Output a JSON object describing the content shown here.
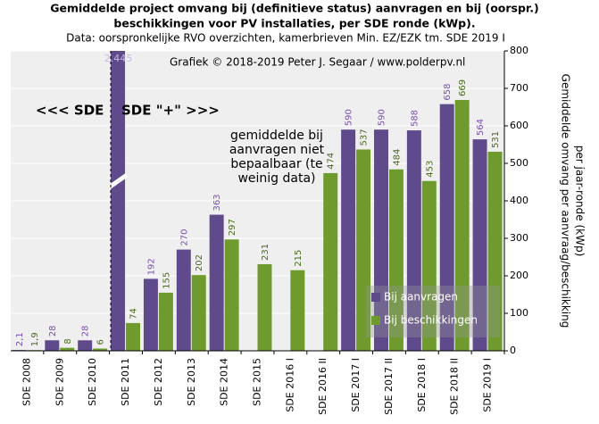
{
  "chart_data": {
    "type": "bar",
    "title": [
      "Gemiddelde project omvang bij (definitieve status) aanvragen en bij (oorspr.)",
      "beschikkingen  voor PV installaties, per SDE ronde (kWp)."
    ],
    "subtitle": "Data: oorspronkelijke  RVO overzichten, kamerbrieven  Min. EZ/EZK tm. SDE 2019 I",
    "categories": [
      "SDE 2008",
      "SDE 2009",
      "SDE 2010",
      "SDE 2011",
      "SDE 2012",
      "SDE 2013",
      "SDE 2014",
      "SDE 2015",
      "SDE 2016 I",
      "SDE 2016 II",
      "SDE 2017 I",
      "SDE 2017 II",
      "SDE 2018 I",
      "SDE 2018 II",
      "SDE 2019 I"
    ],
    "series": [
      {
        "name": "Bij aanvragen",
        "color": "#5f4a8b",
        "label_color": "#7a4fb0",
        "values": [
          2.1,
          28,
          28,
          2445,
          192,
          270,
          363,
          null,
          null,
          null,
          590,
          590,
          588,
          658,
          564
        ],
        "value_labels": [
          "2,1",
          "28",
          "28",
          "2.445",
          "192",
          "270",
          "363",
          null,
          null,
          null,
          "590",
          "590",
          "588",
          "658",
          "564"
        ]
      },
      {
        "name": "Bij beschikkingen",
        "color": "#6e9a2e",
        "label_color": "#4a6a1e",
        "values": [
          1.9,
          8,
          6,
          74,
          155,
          202,
          297,
          231,
          215,
          474,
          537,
          484,
          453,
          669,
          531
        ],
        "value_labels": [
          "1,9",
          "8",
          "6",
          "74",
          "155",
          "202",
          "297",
          "231",
          "215",
          "474",
          "537",
          "484",
          "453",
          "669",
          "531"
        ]
      }
    ],
    "ylim": [
      0,
      800
    ],
    "yticks": [
      0,
      100,
      200,
      300,
      400,
      500,
      600,
      700,
      800
    ],
    "y_label": [
      "Gemiddelde omvang per aanvraag/beschikking",
      "per jaar-ronde (kWp)"
    ],
    "grid": true,
    "legend": "lower right",
    "annotations": {
      "credit": "Grafiek © 2018-2019 Peter J. Segaar / www.polderpv.nl",
      "left": "<<< SDE",
      "right": "SDE \"+\" >>>",
      "note": [
        "gemiddelde bij",
        "aanvragen niet",
        "bepaalbaar (te",
        "weinig data)"
      ]
    }
  }
}
